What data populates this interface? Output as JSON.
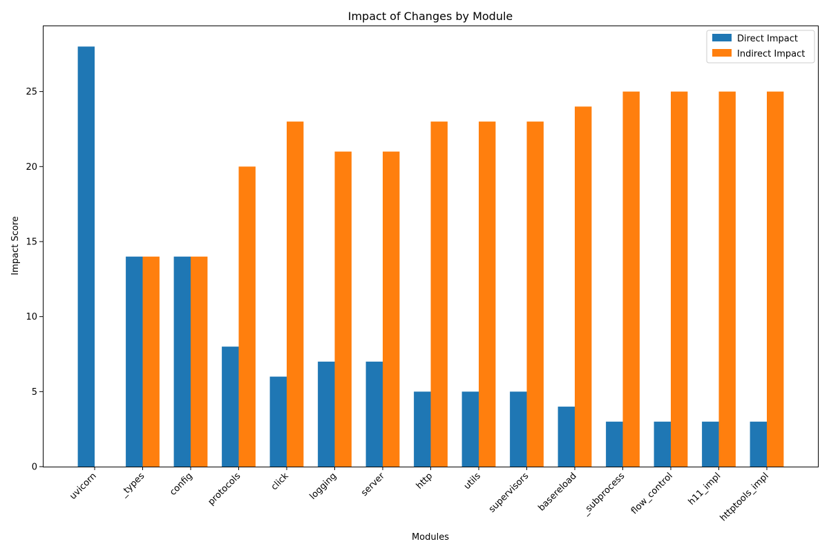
{
  "chart_data": {
    "type": "bar",
    "title": "Impact of Changes by Module",
    "xlabel": "Modules",
    "ylabel": "Impact Score",
    "categories": [
      "uvicorn",
      "_types",
      "config",
      "protocols",
      "click",
      "logging",
      "server",
      "http",
      "utils",
      "supervisors",
      "basereload",
      "_subprocess",
      "flow_control",
      "h11_impl",
      "httptools_impl"
    ],
    "series": [
      {
        "name": "Direct Impact",
        "color": "#1f77b4",
        "values": [
          28,
          14,
          14,
          8,
          6,
          7,
          7,
          5,
          5,
          5,
          4,
          3,
          3,
          3,
          3
        ]
      },
      {
        "name": "Indirect Impact",
        "color": "#ff7f0e",
        "values": [
          0,
          14,
          14,
          20,
          23,
          21,
          21,
          23,
          23,
          23,
          24,
          25,
          25,
          25,
          25
        ]
      }
    ],
    "yticks": [
      0,
      5,
      10,
      15,
      20,
      25
    ],
    "ylim": [
      0,
      29.4
    ],
    "grid": false,
    "legend_position": "top-right"
  }
}
